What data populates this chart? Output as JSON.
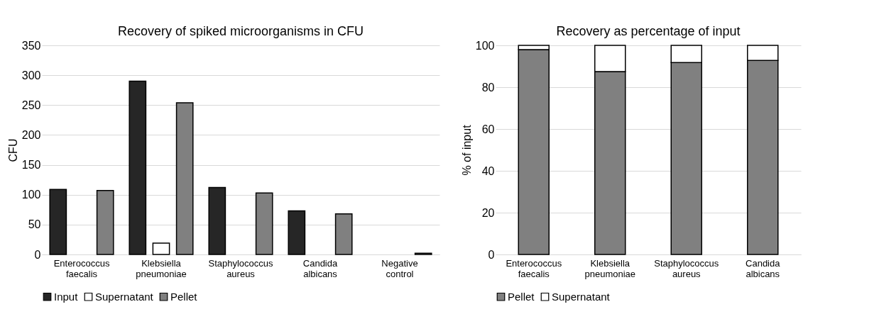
{
  "chart_data": [
    {
      "type": "bar",
      "title": "Recovery of spiked microorganisms in CFU",
      "ylabel": "CFU",
      "categories": [
        "Enterococcus faecalis",
        "Klebsiella pneumoniae",
        "Staphylococcus aureus",
        "Candida albicans",
        "Negative control"
      ],
      "series": [
        {
          "name": "Input",
          "color": "#262626",
          "values": [
            109,
            290,
            112,
            73,
            null
          ]
        },
        {
          "name": "Supernatant",
          "color": "#ffffff",
          "values": [
            null,
            19,
            null,
            null,
            null
          ]
        },
        {
          "name": "Pellet",
          "color": "#808080",
          "values": [
            107,
            254,
            103,
            68,
            2
          ]
        }
      ],
      "ylim": [
        0,
        350
      ],
      "yticks": [
        0,
        50,
        100,
        150,
        200,
        250,
        300,
        350
      ],
      "grid": "y",
      "legend": "bottom"
    },
    {
      "type": "bar",
      "stacked": true,
      "title": "Recovery as percentage of input",
      "ylabel": "% of input",
      "categories": [
        "Enterococcus faecalis",
        "Klebsiella pneumoniae",
        "Staphylococcus aureus",
        "Candida albicans"
      ],
      "series": [
        {
          "name": "Pellet",
          "color": "#808080",
          "values": [
            98,
            87.5,
            91.8,
            92.8
          ]
        },
        {
          "name": "Supernatant",
          "color": "#ffffff",
          "values": [
            2,
            12.5,
            8.2,
            7.2
          ]
        }
      ],
      "ylim": [
        0,
        100
      ],
      "yticks": [
        0,
        20,
        40,
        60,
        80,
        100
      ],
      "grid": "y",
      "legend": "bottom"
    }
  ]
}
